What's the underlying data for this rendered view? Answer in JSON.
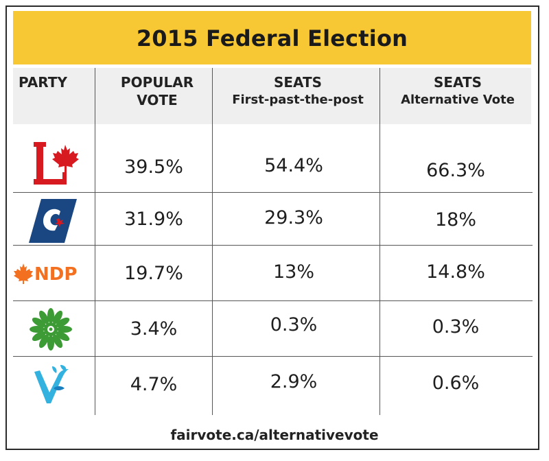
{
  "title": "2015 Federal Election",
  "headers": {
    "party": "PARTY",
    "popular_vote": "POPULAR VOTE",
    "seats_fptp_main": "SEATS",
    "seats_fptp_sub": "First-past-the-post",
    "seats_av_main": "SEATS",
    "seats_av_sub": "Alternative Vote"
  },
  "rows": [
    {
      "party_icon": "liberal-logo-icon",
      "popular_vote": "39.5%",
      "seats_fptp": "54.4%",
      "seats_av": "66.3%"
    },
    {
      "party_icon": "conservative-logo-icon",
      "popular_vote": "31.9%",
      "seats_fptp": "29.3%",
      "seats_av": "18%"
    },
    {
      "party_icon": "ndp-logo-icon",
      "ndp_text": "NDP",
      "popular_vote": "19.7%",
      "seats_fptp": "13%",
      "seats_av": "14.8%"
    },
    {
      "party_icon": "green-logo-icon",
      "popular_vote": "3.4%",
      "seats_fptp": "0.3%",
      "seats_av": "0.3%"
    },
    {
      "party_icon": "bloc-logo-icon",
      "popular_vote": "4.7%",
      "seats_fptp": "2.9%",
      "seats_av": "0.6%"
    }
  ],
  "footer": "fairvote.ca/alternativevote",
  "colors": {
    "title_bg": "#f7c734",
    "header_bg": "#efefef",
    "liberal_red": "#d71920",
    "conservative_blue": "#1a4782",
    "ndp_orange": "#f37021",
    "green": "#3d9b35",
    "bloc_blue": "#33b2e0"
  },
  "chart_data": {
    "type": "table",
    "title": "2015 Federal Election",
    "columns": [
      "PARTY",
      "POPULAR VOTE",
      "SEATS First-past-the-post",
      "SEATS Alternative Vote"
    ],
    "rows": [
      [
        "Liberal",
        39.5,
        54.4,
        66.3
      ],
      [
        "Conservative",
        31.9,
        29.3,
        18
      ],
      [
        "NDP",
        19.7,
        13,
        14.8
      ],
      [
        "Green",
        3.4,
        0.3,
        0.3
      ],
      [
        "Bloc Québécois",
        4.7,
        2.9,
        0.6
      ]
    ]
  }
}
